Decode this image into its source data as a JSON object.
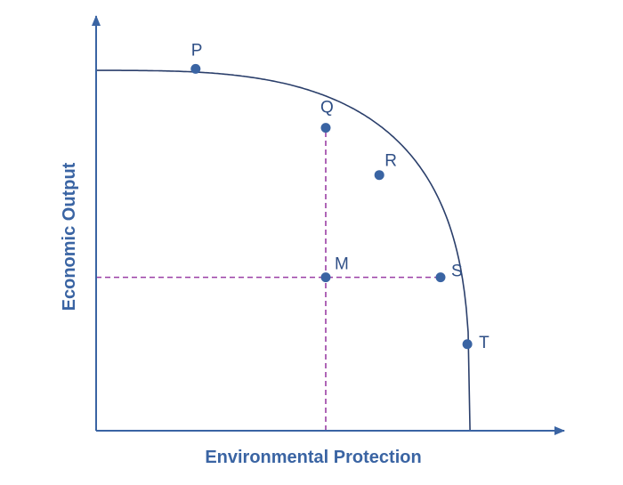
{
  "chart_data": {
    "type": "line",
    "xlabel": "Environmental Protection",
    "ylabel": "Economic Output",
    "colors": {
      "axis": "#3a64a3",
      "curve": "#2b3f6b",
      "point": "#3a64a3",
      "guide": "#9b3fa5",
      "axis_label": "#3a64a3",
      "point_label": "#2f4f86"
    },
    "curve_style": "concave production possibilities frontier",
    "points": [
      {
        "label": "P",
        "x": 2.6,
        "y": 9.2
      },
      {
        "label": "Q",
        "x": 6.0,
        "y": 7.7
      },
      {
        "label": "R",
        "x": 7.4,
        "y": 6.5
      },
      {
        "label": "S",
        "x": 9.0,
        "y": 3.9
      },
      {
        "label": "T",
        "x": 9.7,
        "y": 2.2
      },
      {
        "label": "M",
        "x": 6.0,
        "y": 3.9
      }
    ],
    "guides": [
      {
        "from": "M",
        "to": "Q",
        "style": "dashed"
      },
      {
        "from": "M",
        "to": "S",
        "style": "dashed"
      }
    ],
    "grid": false,
    "ticks": false
  }
}
